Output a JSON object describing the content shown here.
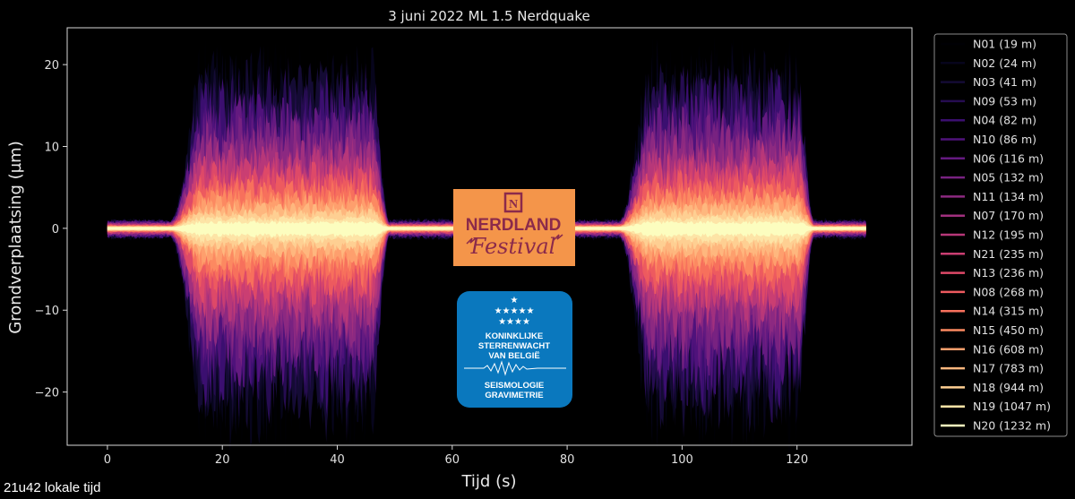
{
  "chart_data": {
    "type": "area",
    "title": "3 juni 2022 ML 1.5 Nerdquake",
    "xlabel": "Tijd (s)",
    "ylabel": "Grondverplaatsing (µm)",
    "xlim": [
      -7,
      140
    ],
    "ylim": [
      -26.5,
      24.5
    ],
    "xticks": [
      0,
      20,
      40,
      60,
      80,
      100,
      120
    ],
    "yticks": [
      20,
      10,
      0,
      -10,
      -20
    ],
    "xticklabels": [
      "0",
      "20",
      "40",
      "60",
      "80",
      "100",
      "120"
    ],
    "yticklabels": [
      "20",
      "10",
      "0",
      "−10",
      "−20"
    ],
    "grid": false,
    "legend_position": "outside-right",
    "series": [
      {
        "name": "N01 (19 m)",
        "color": "#000004",
        "amplitude": 17.0
      },
      {
        "name": "N02 (24 m)",
        "color": "#07051c",
        "amplitude": 16.5
      },
      {
        "name": "N03 (41 m)",
        "color": "#140b34",
        "amplitude": 15.5
      },
      {
        "name": "N09 (53 m)",
        "color": "#260c51",
        "amplitude": 14.5
      },
      {
        "name": "N04 (82 m)",
        "color": "#3b0f70",
        "amplitude": 13.5
      },
      {
        "name": "N10 (86 m)",
        "color": "#4f127b",
        "amplitude": 12.5
      },
      {
        "name": "N06 (116 m)",
        "color": "#641a80",
        "amplitude": 11.5
      },
      {
        "name": "N05 (132 m)",
        "color": "#782281",
        "amplitude": 10.5
      },
      {
        "name": "N11 (134 m)",
        "color": "#8c2981",
        "amplitude": 9.5
      },
      {
        "name": "N07 (170 m)",
        "color": "#a1307e",
        "amplitude": 8.5
      },
      {
        "name": "N12 (195 m)",
        "color": "#b73779",
        "amplitude": 7.5
      },
      {
        "name": "N21 (235 m)",
        "color": "#ca3e72",
        "amplitude": 6.7
      },
      {
        "name": "N13 (236 m)",
        "color": "#de4968",
        "amplitude": 6.0
      },
      {
        "name": "N08 (268 m)",
        "color": "#ed5a5f",
        "amplitude": 5.2
      },
      {
        "name": "N14 (315 m)",
        "color": "#f7705c",
        "amplitude": 4.4
      },
      {
        "name": "N15 (450 m)",
        "color": "#fc8961",
        "amplitude": 3.7
      },
      {
        "name": "N16 (608 m)",
        "color": "#fe9f6d",
        "amplitude": 3.0
      },
      {
        "name": "N17 (783 m)",
        "color": "#feb77e",
        "amplitude": 2.3
      },
      {
        "name": "N18 (944 m)",
        "color": "#fecf92",
        "amplitude": 1.7
      },
      {
        "name": "N19 (1047 m)",
        "color": "#fde4a6",
        "amplitude": 1.1
      },
      {
        "name": "N20 (1232 m)",
        "color": "#fcfdbf",
        "amplitude": 0.6
      }
    ],
    "bursts": [
      {
        "start": 13,
        "end": 48
      },
      {
        "start": 91,
        "end": 122
      }
    ],
    "duration": [
      0,
      132
    ]
  },
  "logos": {
    "festival": {
      "top": "NERDLAND",
      "bottom": "Festival",
      "bg": "#f4954a",
      "ink": "#8b2a4b"
    },
    "observatory": {
      "line1": "KONINKLIJKE",
      "line2": "STERRENWACHT",
      "line3": "VAN BELGIË",
      "line4": "SEISMOLOGIE",
      "line5": "GRAVIMETRIE",
      "bg": "#0a78be"
    }
  },
  "corner_note": "21u42 lokale tijd"
}
